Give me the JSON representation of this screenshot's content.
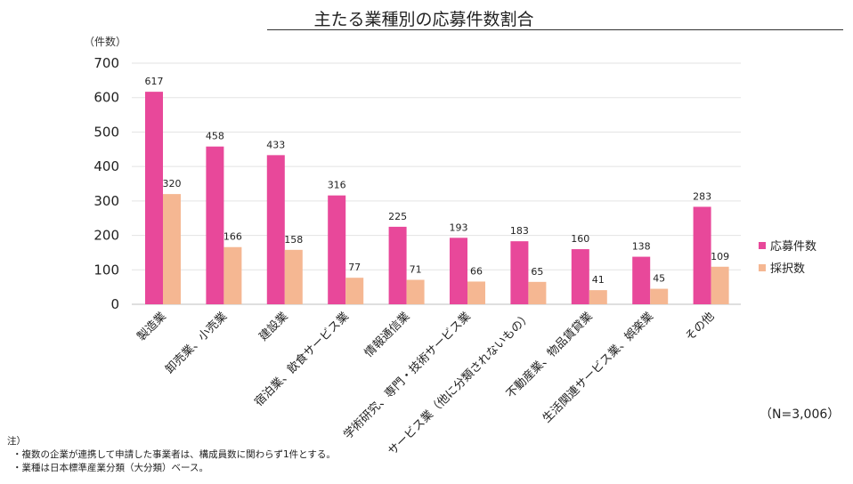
{
  "chart_data": {
    "type": "bar",
    "title": "主たる業種別の応募件数割合",
    "unit_label": "（件数）",
    "categories": [
      "製造業",
      "卸売業、小売業",
      "建設業",
      "宿泊業、飲食サービス業",
      "情報通信業",
      "学術研究、専門・技術サービス業",
      "サービス業（他に分類されないもの）",
      "不動産業、物品賃貸業",
      "生活関連サービス業、娯楽業",
      "その他"
    ],
    "series": [
      {
        "name": "応募件数",
        "color": "#e8489a",
        "values": [
          617,
          458,
          433,
          316,
          225,
          193,
          183,
          160,
          138,
          283
        ]
      },
      {
        "name": "採択数",
        "color": "#f5b792",
        "values": [
          320,
          166,
          158,
          77,
          71,
          66,
          65,
          41,
          45,
          109
        ]
      }
    ],
    "ylim": [
      0,
      700
    ],
    "yticks": [
      "0",
      "100",
      "200",
      "300",
      "400",
      "500",
      "600",
      "700"
    ],
    "grid": true,
    "legend": "right"
  },
  "sample_note": "（N=3,006）",
  "notes": {
    "heading": "注）",
    "lines": [
      "・複数の企業が連携して申請した事業者は、構成員数に関わらず1件とする。",
      "・業種は日本標準産業分類（大分類）ベース。"
    ]
  }
}
